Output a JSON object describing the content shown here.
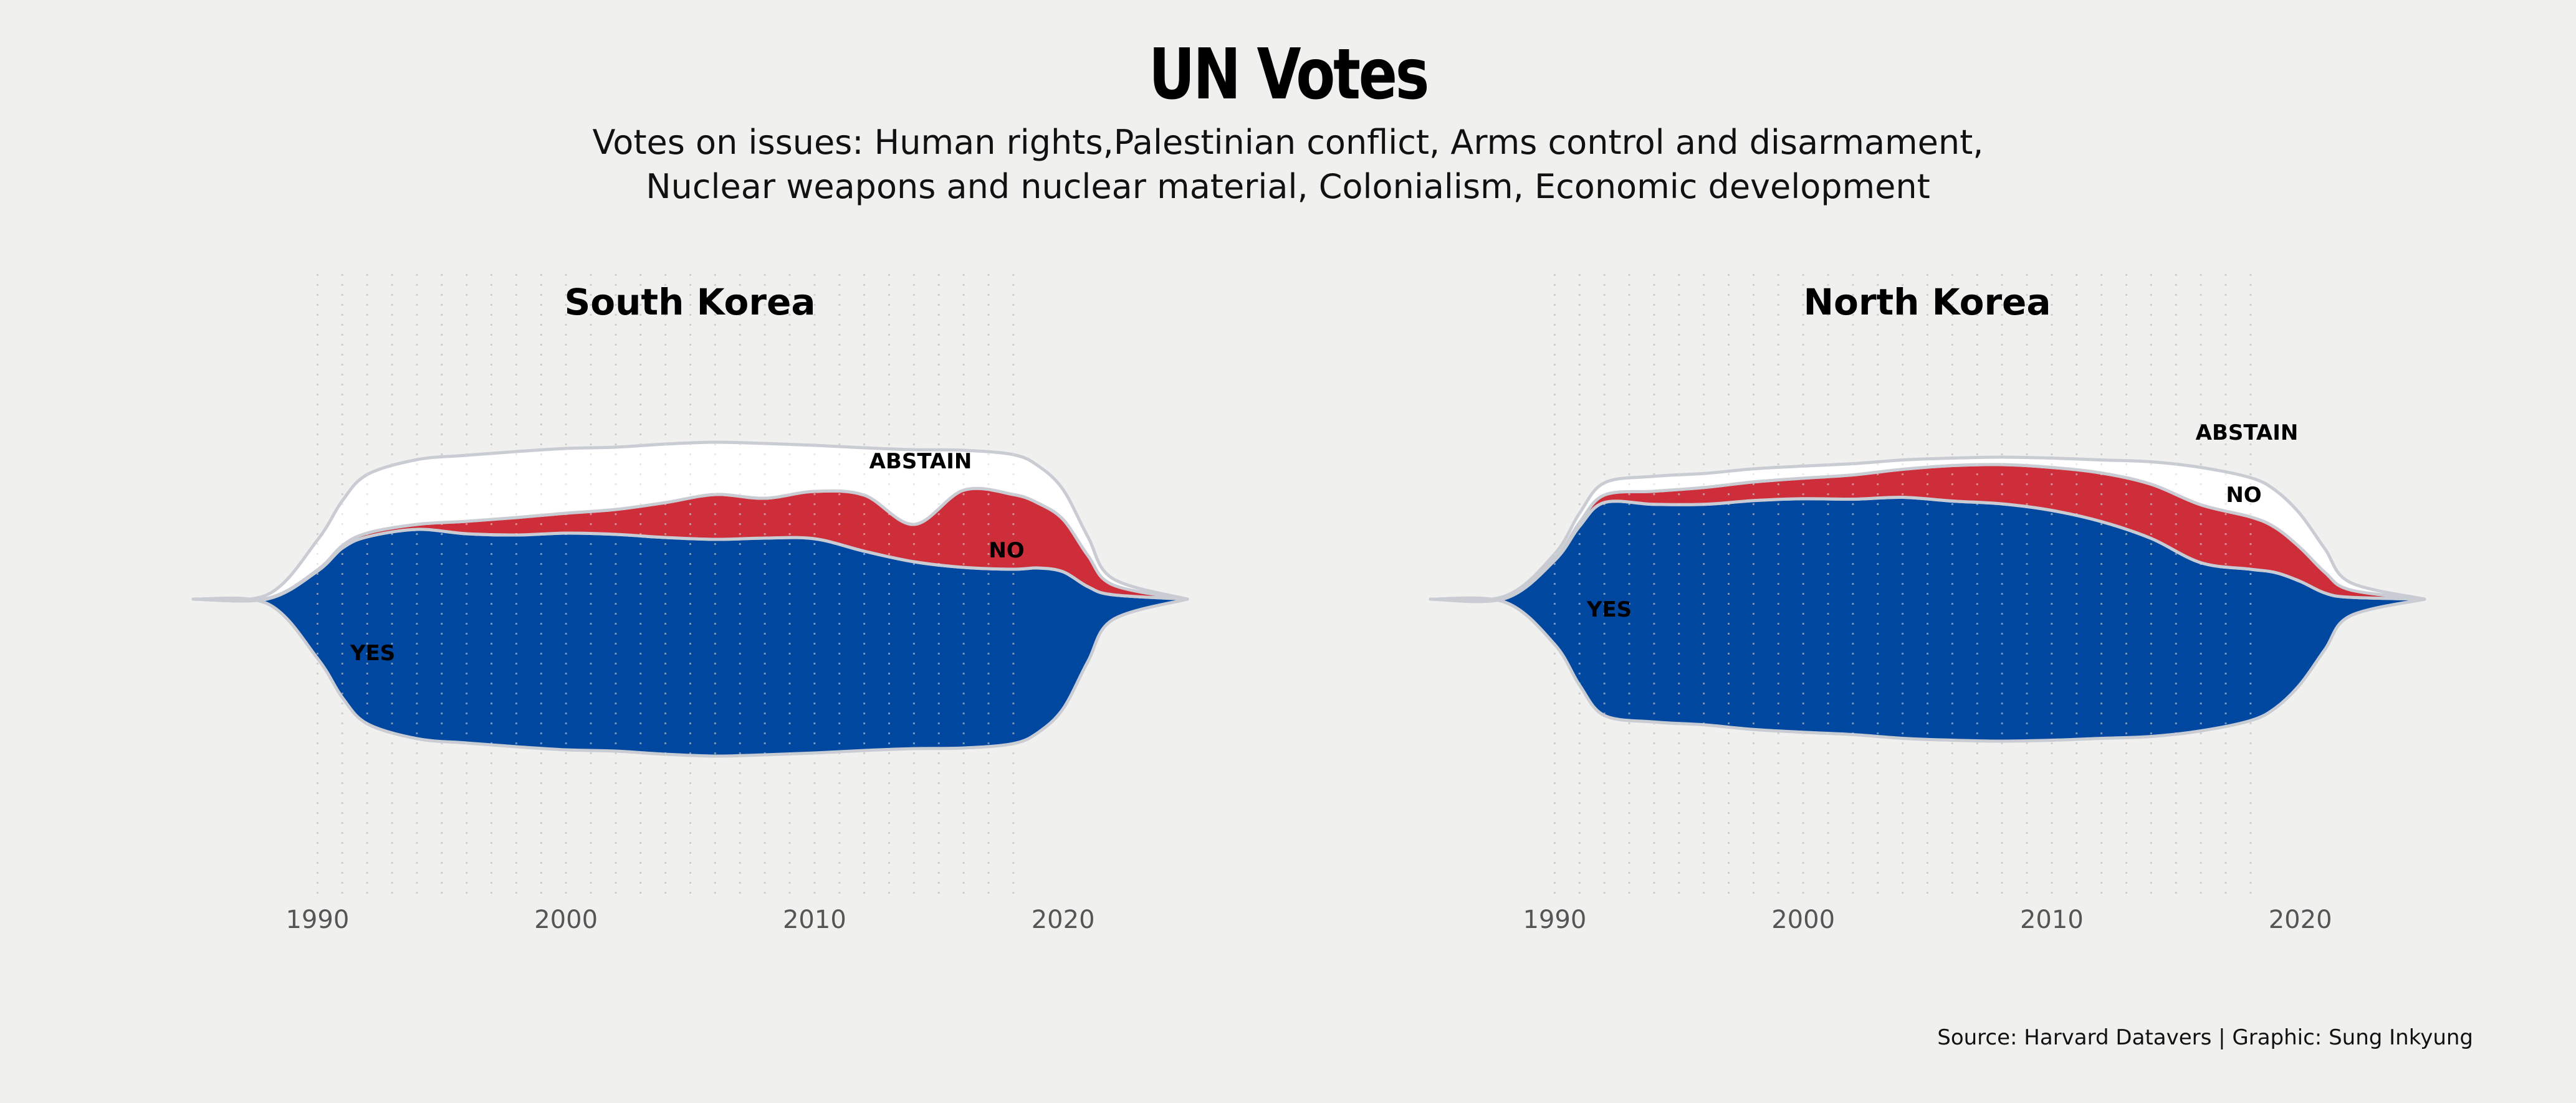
{
  "title": "UN Votes",
  "subtitle_lines": [
    "Votes on issues: Human rights,Palestinian conflict, Arms control and disarmament,",
    "Nuclear weapons and nuclear material, Colonialism, Economic development"
  ],
  "caption": "Source: Harvard Datavers | Graphic: Sung Inkyung",
  "colors": {
    "yes": "#0047a0",
    "no": "#cd2e3a",
    "abstain": "#ffffff",
    "outline": "#c9ccd3",
    "grid": "#c4c4c4",
    "background": "#f0f0ee"
  },
  "chart_data": [
    {
      "type": "area",
      "subtype": "streamgraph",
      "title": "South Korea",
      "x_ticks": [
        1990,
        2000,
        2010,
        2020
      ],
      "xlim": [
        1985,
        2025
      ],
      "grid": "vertical dotted lines, yearly",
      "labels": [
        "YES",
        "NO",
        "ABSTAIN"
      ],
      "x": [
        1985,
        1988,
        1990,
        1991,
        1992,
        1994,
        1996,
        1998,
        2000,
        2002,
        2004,
        2006,
        2008,
        2010,
        2012,
        2014,
        2016,
        2018,
        2019,
        2020,
        2021,
        2022,
        2025
      ],
      "series": [
        {
          "name": "YES",
          "values": [
            0,
            4,
            70,
            120,
            150,
            168,
            168,
            170,
            174,
            174,
            174,
            174,
            174,
            172,
            160,
            150,
            145,
            140,
            132,
            110,
            60,
            20,
            0
          ]
        },
        {
          "name": "NO",
          "values": [
            0,
            0.5,
            1,
            2,
            3,
            4,
            10,
            14,
            16,
            20,
            28,
            36,
            32,
            38,
            45,
            30,
            62,
            60,
            52,
            42,
            25,
            8,
            0
          ]
        },
        {
          "name": "ABSTAIN",
          "values": [
            0,
            3,
            24,
            36,
            47,
            52,
            53,
            53,
            52,
            50,
            47,
            42,
            44,
            37,
            38,
            60,
            32,
            32,
            30,
            24,
            15,
            5,
            0
          ]
        }
      ]
    },
    {
      "type": "area",
      "subtype": "streamgraph",
      "title": "North Korea",
      "x_ticks": [
        1990,
        2000,
        2010,
        2020
      ],
      "xlim": [
        1985,
        2025
      ],
      "grid": "vertical dotted lines, yearly",
      "labels": [
        "YES",
        "NO",
        "ABSTAIN"
      ],
      "x": [
        1985,
        1988,
        1990,
        1991,
        1992,
        1994,
        1996,
        1998,
        2000,
        2002,
        2004,
        2006,
        2008,
        2010,
        2012,
        2014,
        2016,
        2018,
        2019,
        2020,
        2021,
        2022,
        2025
      ],
      "series": [
        {
          "name": "YES",
          "values": [
            0,
            4,
            90,
            170,
            228,
            233,
            236,
            245,
            250,
            252,
            258,
            256,
            254,
            246,
            232,
            212,
            180,
            162,
            145,
            110,
            60,
            20,
            0
          ]
        },
        {
          "name": "NO",
          "values": [
            0,
            0.5,
            2,
            4,
            8,
            14,
            18,
            20,
            22,
            26,
            30,
            38,
            42,
            46,
            52,
            58,
            62,
            56,
            48,
            36,
            22,
            8,
            0
          ]
        },
        {
          "name": "ABSTAIN",
          "values": [
            0,
            2,
            5,
            10,
            13,
            16,
            15,
            14,
            13,
            12,
            10,
            8,
            8,
            10,
            14,
            24,
            40,
            42,
            40,
            36,
            25,
            8,
            0
          ]
        }
      ]
    }
  ]
}
